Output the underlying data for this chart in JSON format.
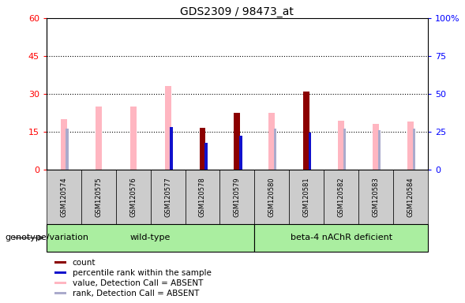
{
  "title": "GDS2309 / 98473_at",
  "samples": [
    "GSM120574",
    "GSM120575",
    "GSM120576",
    "GSM120577",
    "GSM120578",
    "GSM120579",
    "GSM120580",
    "GSM120581",
    "GSM120582",
    "GSM120583",
    "GSM120584"
  ],
  "n_wildtype": 6,
  "n_deficient": 5,
  "count": [
    0,
    0,
    0,
    0,
    16.5,
    22.5,
    0,
    31.0,
    0,
    0,
    0
  ],
  "percentile_rank": [
    0,
    0,
    0,
    28.0,
    17.5,
    22.5,
    0,
    24.5,
    0,
    0,
    0
  ],
  "value_absent": [
    20.0,
    25.0,
    25.0,
    33.0,
    0,
    0,
    22.5,
    0,
    19.5,
    18.0,
    19.0
  ],
  "rank_absent_pct": [
    27.0,
    0,
    0,
    0,
    0,
    0,
    27.0,
    0,
    27.0,
    26.0,
    27.0
  ],
  "ylim_left": [
    0,
    60
  ],
  "ylim_right": [
    0,
    100
  ],
  "yticks_left": [
    0,
    15,
    30,
    45,
    60
  ],
  "yticks_right": [
    0,
    25,
    50,
    75,
    100
  ],
  "ytick_labels_left": [
    "0",
    "15",
    "30",
    "45",
    "60"
  ],
  "ytick_labels_right": [
    "0",
    "25",
    "50",
    "75",
    "100%"
  ],
  "color_count": "#8B0000",
  "color_percentile": "#1111CC",
  "color_value_absent": "#FFB6C1",
  "color_rank_absent": "#AAAACC",
  "color_wildtype_bg": "#AAEEA0",
  "color_deficient_bg": "#AAEEA0",
  "color_sample_box": "#CCCCCC",
  "color_plot_bg": "#FFFFFF",
  "genotype_label": "genotype/variation",
  "wildtype_label": "wild-type",
  "deficient_label": "beta-4 nAChR deficient",
  "legend_items": [
    {
      "label": "count",
      "color": "#8B0000"
    },
    {
      "label": "percentile rank within the sample",
      "color": "#1111CC"
    },
    {
      "label": "value, Detection Call = ABSENT",
      "color": "#FFB6C1"
    },
    {
      "label": "rank, Detection Call = ABSENT",
      "color": "#AAAACC"
    }
  ]
}
